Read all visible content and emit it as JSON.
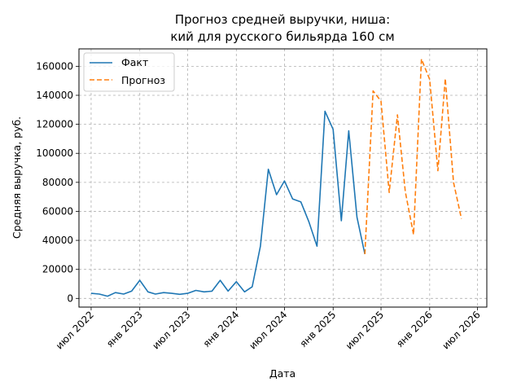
{
  "chart_data": {
    "type": "line",
    "title_line1": "Прогноз средней выручки, ниша:",
    "title_line2": "кий для русского бильярда 160 см",
    "xlabel": "Дата",
    "ylabel": "Средняя выручка, руб.",
    "ylim": [
      -6000,
      172000
    ],
    "yticks": [
      0,
      20000,
      40000,
      60000,
      80000,
      100000,
      120000,
      140000,
      160000
    ],
    "xlim": [
      "2022-05-16",
      "2026-08-05"
    ],
    "xticks": [
      {
        "date": "2022-07-01",
        "label": "июл 2022"
      },
      {
        "date": "2023-01-01",
        "label": "янв 2023"
      },
      {
        "date": "2023-07-01",
        "label": "июл 2023"
      },
      {
        "date": "2024-01-01",
        "label": "янв 2024"
      },
      {
        "date": "2024-07-01",
        "label": "июл 2024"
      },
      {
        "date": "2025-01-01",
        "label": "янв 2025"
      },
      {
        "date": "2025-07-01",
        "label": "июл 2025"
      },
      {
        "date": "2026-01-01",
        "label": "янв 2026"
      },
      {
        "date": "2026-07-01",
        "label": "июл 2026"
      }
    ],
    "grid": true,
    "legend": "top-left",
    "series": [
      {
        "name": "Факт",
        "color": "#1f77b4",
        "style": "solid",
        "points": [
          [
            "2022-07-01",
            3500
          ],
          [
            "2022-08-01",
            3000
          ],
          [
            "2022-09-01",
            1500
          ],
          [
            "2022-10-01",
            4000
          ],
          [
            "2022-11-01",
            3000
          ],
          [
            "2022-12-01",
            5000
          ],
          [
            "2023-01-01",
            12500
          ],
          [
            "2023-02-01",
            4500
          ],
          [
            "2023-03-01",
            3000
          ],
          [
            "2023-04-01",
            4000
          ],
          [
            "2023-05-01",
            3500
          ],
          [
            "2023-06-01",
            2800
          ],
          [
            "2023-07-01",
            3500
          ],
          [
            "2023-08-01",
            5500
          ],
          [
            "2023-09-01",
            4500
          ],
          [
            "2023-10-01",
            5000
          ],
          [
            "2023-11-01",
            12500
          ],
          [
            "2023-12-01",
            5000
          ],
          [
            "2024-01-01",
            11500
          ],
          [
            "2024-02-01",
            4500
          ],
          [
            "2024-03-01",
            8000
          ],
          [
            "2024-04-01",
            36000
          ],
          [
            "2024-05-01",
            89000
          ],
          [
            "2024-06-01",
            71500
          ],
          [
            "2024-07-01",
            81000
          ],
          [
            "2024-08-01",
            68500
          ],
          [
            "2024-09-01",
            66500
          ],
          [
            "2024-10-01",
            53000
          ],
          [
            "2024-11-01",
            36000
          ],
          [
            "2024-12-01",
            129000
          ],
          [
            "2025-01-01",
            116500
          ],
          [
            "2025-02-01",
            53500
          ],
          [
            "2025-03-01",
            115500
          ],
          [
            "2025-04-01",
            56000
          ],
          [
            "2025-05-01",
            30500
          ]
        ]
      },
      {
        "name": "Прогноз",
        "color": "#ff7f0e",
        "style": "dashed",
        "points": [
          [
            "2025-05-01",
            30500
          ],
          [
            "2025-06-01",
            143000
          ],
          [
            "2025-07-01",
            136000
          ],
          [
            "2025-08-01",
            73000
          ],
          [
            "2025-09-01",
            126500
          ],
          [
            "2025-10-01",
            73500
          ],
          [
            "2025-11-01",
            44000
          ],
          [
            "2025-12-01",
            165000
          ],
          [
            "2026-01-01",
            151000
          ],
          [
            "2026-02-01",
            88000
          ],
          [
            "2026-03-01",
            151500
          ],
          [
            "2026-04-01",
            80000
          ],
          [
            "2026-05-01",
            55000
          ]
        ]
      }
    ]
  }
}
